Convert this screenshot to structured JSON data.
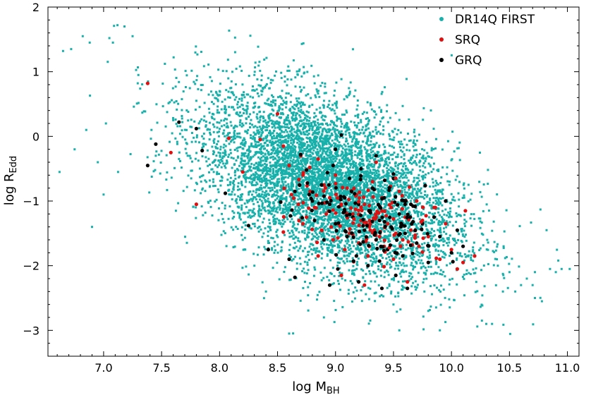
{
  "chart_data": {
    "type": "scatter",
    "title": "",
    "xlabel": "log M",
    "xlabel_sub": "BH",
    "ylabel": "log R",
    "ylabel_sub": "Edd",
    "xlim": [
      6.52,
      11.1
    ],
    "ylim": [
      -3.4,
      2.0
    ],
    "xticks": [
      7.0,
      7.5,
      8.0,
      8.5,
      9.0,
      9.5,
      10.0,
      10.5,
      11.0
    ],
    "xtick_labels": [
      "7.0",
      "7.5",
      "8.0",
      "8.5",
      "9.0",
      "9.5",
      "10.0",
      "10.5",
      "11.0"
    ],
    "yticks": [
      2,
      1,
      0,
      -1,
      -2,
      -3
    ],
    "ytick_labels": [
      "2",
      "1",
      "0",
      "−1",
      "−2",
      "−3"
    ],
    "grid": false,
    "legend_position": "top-right",
    "series": [
      {
        "name": "DR14Q FIRST",
        "color": "#17b0ab",
        "marker": "square",
        "note_points": "dense cloud; representative sample",
        "cloud": {
          "x_center": 8.95,
          "y_center": -0.75,
          "x_sd": 0.55,
          "y_sd": 0.62,
          "trend_slope": -0.62
        },
        "points": [
          [
            6.62,
            -0.55
          ],
          [
            6.65,
            1.32
          ],
          [
            6.72,
            1.35
          ],
          [
            6.82,
            1.55
          ],
          [
            6.88,
            1.45
          ],
          [
            7.05,
            1.52
          ],
          [
            7.08,
            1.45
          ],
          [
            7.12,
            1.72
          ],
          [
            7.18,
            1.7
          ],
          [
            7.25,
            1.55
          ],
          [
            6.75,
            -0.2
          ],
          [
            6.85,
            0.1
          ],
          [
            6.95,
            -0.4
          ],
          [
            7.02,
            0.2
          ],
          [
            6.9,
            -1.4
          ],
          [
            7.0,
            -0.9
          ],
          [
            7.3,
            0.95
          ],
          [
            7.45,
            -0.3
          ],
          [
            7.6,
            0.25
          ],
          [
            7.8,
            0.55
          ],
          [
            8.0,
            0.7
          ],
          [
            8.1,
            0.75
          ],
          [
            8.3,
            0.95
          ],
          [
            8.42,
            0.9
          ],
          [
            8.55,
            0.55
          ],
          [
            10.4,
            -2.0
          ],
          [
            10.45,
            -1.7
          ],
          [
            10.5,
            -2.1
          ],
          [
            10.55,
            -2.4
          ],
          [
            10.6,
            -2.3
          ],
          [
            10.65,
            -2.2
          ],
          [
            10.7,
            -2.3
          ],
          [
            10.72,
            -2.5
          ],
          [
            10.78,
            -2.55
          ],
          [
            10.82,
            -1.45
          ],
          [
            10.85,
            -2.05
          ],
          [
            10.9,
            -2.1
          ],
          [
            10.95,
            -2.05
          ],
          [
            11.02,
            -2.05
          ],
          [
            10.72,
            -2.1
          ],
          [
            8.6,
            -3.05
          ],
          [
            9.9,
            -3.0
          ],
          [
            10.3,
            -2.9
          ],
          [
            10.35,
            -2.9
          ],
          [
            9.55,
            -3.0
          ],
          [
            9.8,
            -2.7
          ],
          [
            9.5,
            -2.6
          ],
          [
            8.9,
            -2.8
          ],
          [
            8.4,
            -2.4
          ],
          [
            8.3,
            -2.0
          ]
        ]
      },
      {
        "name": "SRQ",
        "color": "#e01010",
        "marker": "circle",
        "note_points": "representative sample",
        "points": [
          [
            7.38,
            0.82
          ],
          [
            7.58,
            -0.25
          ],
          [
            7.8,
            -1.05
          ],
          [
            8.08,
            -0.03
          ],
          [
            8.2,
            -0.55
          ],
          [
            8.35,
            -0.05
          ],
          [
            8.5,
            0.35
          ],
          [
            8.55,
            -0.15
          ],
          [
            8.6,
            -0.45
          ],
          [
            8.62,
            -0.9
          ],
          [
            8.68,
            -1.05
          ],
          [
            8.72,
            -0.6
          ],
          [
            8.75,
            -1.25
          ],
          [
            8.78,
            -0.85
          ],
          [
            8.82,
            -1.1
          ],
          [
            8.85,
            -0.35
          ],
          [
            8.88,
            -1.45
          ],
          [
            8.9,
            -0.75
          ],
          [
            8.92,
            -1.2
          ],
          [
            8.95,
            -0.95
          ],
          [
            8.98,
            -1.6
          ],
          [
            9.0,
            -0.6
          ],
          [
            9.02,
            -1.35
          ],
          [
            9.05,
            -1.05
          ],
          [
            9.08,
            -1.75
          ],
          [
            9.1,
            -0.8
          ],
          [
            9.12,
            -1.5
          ],
          [
            9.15,
            -1.2
          ],
          [
            9.18,
            -0.9
          ],
          [
            9.2,
            -1.65
          ],
          [
            9.22,
            -1.3
          ],
          [
            9.25,
            -1.05
          ],
          [
            9.28,
            -1.85
          ],
          [
            9.3,
            -1.45
          ],
          [
            9.32,
            -0.7
          ],
          [
            9.35,
            -1.25
          ],
          [
            9.38,
            -1.55
          ],
          [
            9.4,
            -0.95
          ],
          [
            9.42,
            -1.7
          ],
          [
            9.45,
            -1.35
          ],
          [
            9.48,
            -1.1
          ],
          [
            9.5,
            -1.9
          ],
          [
            9.52,
            -1.5
          ],
          [
            9.55,
            -0.85
          ],
          [
            9.58,
            -1.6
          ],
          [
            9.6,
            -1.25
          ],
          [
            9.62,
            -2.25
          ],
          [
            9.65,
            -1.45
          ],
          [
            9.7,
            -1.0
          ],
          [
            9.72,
            -1.7
          ],
          [
            9.75,
            -1.3
          ],
          [
            9.8,
            -1.55
          ],
          [
            9.85,
            -1.1
          ],
          [
            9.9,
            -1.9
          ],
          [
            9.95,
            -1.35
          ],
          [
            10.0,
            -1.75
          ],
          [
            10.05,
            -2.05
          ],
          [
            10.1,
            -1.95
          ],
          [
            10.12,
            -1.15
          ],
          [
            10.2,
            -1.85
          ],
          [
            9.25,
            -2.3
          ],
          [
            9.05,
            -2.15
          ],
          [
            8.85,
            -1.85
          ],
          [
            8.7,
            -0.3
          ],
          [
            9.35,
            -0.4
          ]
        ]
      },
      {
        "name": "GRQ",
        "color": "#000000",
        "marker": "circle",
        "note_points": "representative sample",
        "points": [
          [
            7.38,
            -0.45
          ],
          [
            7.45,
            -0.12
          ],
          [
            7.65,
            0.22
          ],
          [
            7.8,
            0.12
          ],
          [
            7.85,
            -0.22
          ],
          [
            8.05,
            -0.88
          ],
          [
            8.25,
            -1.38
          ],
          [
            8.42,
            -1.75
          ],
          [
            8.6,
            -1.9
          ],
          [
            8.65,
            -2.18
          ],
          [
            8.7,
            -0.28
          ],
          [
            8.75,
            -0.52
          ],
          [
            8.8,
            -1.0
          ],
          [
            8.82,
            -1.3
          ],
          [
            8.88,
            -0.75
          ],
          [
            8.9,
            -1.6
          ],
          [
            8.95,
            -1.05
          ],
          [
            8.98,
            -0.45
          ],
          [
            9.0,
            -1.35
          ],
          [
            9.02,
            -2.05
          ],
          [
            9.05,
            0.02
          ],
          [
            9.08,
            -0.95
          ],
          [
            9.1,
            -1.55
          ],
          [
            9.12,
            -0.65
          ],
          [
            9.15,
            -1.25
          ],
          [
            9.18,
            -1.85
          ],
          [
            9.2,
            -1.05
          ],
          [
            9.22,
            -0.5
          ],
          [
            9.25,
            -1.45
          ],
          [
            9.28,
            -2.0
          ],
          [
            9.3,
            -1.15
          ],
          [
            9.32,
            -0.8
          ],
          [
            9.35,
            -1.6
          ],
          [
            9.38,
            -1.3
          ],
          [
            9.4,
            -2.35
          ],
          [
            9.42,
            -0.95
          ],
          [
            9.45,
            -1.75
          ],
          [
            9.48,
            -1.4
          ],
          [
            9.5,
            -0.65
          ],
          [
            9.52,
            -2.15
          ],
          [
            9.55,
            -1.2
          ],
          [
            9.58,
            -1.85
          ],
          [
            9.6,
            -1.5
          ],
          [
            9.62,
            -2.35
          ],
          [
            9.65,
            -1.05
          ],
          [
            9.7,
            -1.65
          ],
          [
            9.75,
            -1.35
          ],
          [
            9.8,
            -1.95
          ],
          [
            9.85,
            -1.25
          ],
          [
            9.9,
            -1.55
          ],
          [
            9.95,
            -1.0
          ],
          [
            10.0,
            -1.8
          ],
          [
            10.05,
            -1.45
          ],
          [
            10.1,
            -1.7
          ],
          [
            9.2,
            -2.25
          ],
          [
            8.95,
            -2.3
          ],
          [
            9.35,
            -0.3
          ],
          [
            8.65,
            -0.85
          ],
          [
            9.6,
            -1.05
          ],
          [
            9.0,
            -0.2
          ]
        ]
      }
    ]
  }
}
